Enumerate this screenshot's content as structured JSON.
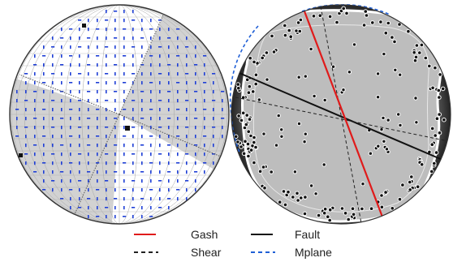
{
  "colors": {
    "circle_outline": "#333333",
    "grid_line": "#a9a9a9",
    "mark_blue": "#1f3fd6",
    "shaded_fill": "#d2d2d2",
    "right_fill": "#bdbdbd",
    "rim_dark": "#1e1e1e",
    "contour_white": "#ffffff",
    "gash": "#e01b1b",
    "fault": "#111111",
    "shear": "#222222",
    "mplane": "#1f5fd6"
  },
  "left_plot": {
    "type": "stereonet-with-dihedra",
    "center_mark": "square"
  },
  "right_plot": {
    "type": "density-contour-stereonet",
    "poles": "black-dots-white-outline"
  },
  "legend": {
    "items": [
      {
        "label": "Gash",
        "style": "solid",
        "color": "#e01b1b"
      },
      {
        "label": "Fault",
        "style": "solid",
        "color": "#111111"
      },
      {
        "label": "Shear",
        "style": "dashed",
        "color": "#222222"
      },
      {
        "label": "Mplane",
        "style": "dashed",
        "color": "#1f5fd6"
      }
    ]
  }
}
